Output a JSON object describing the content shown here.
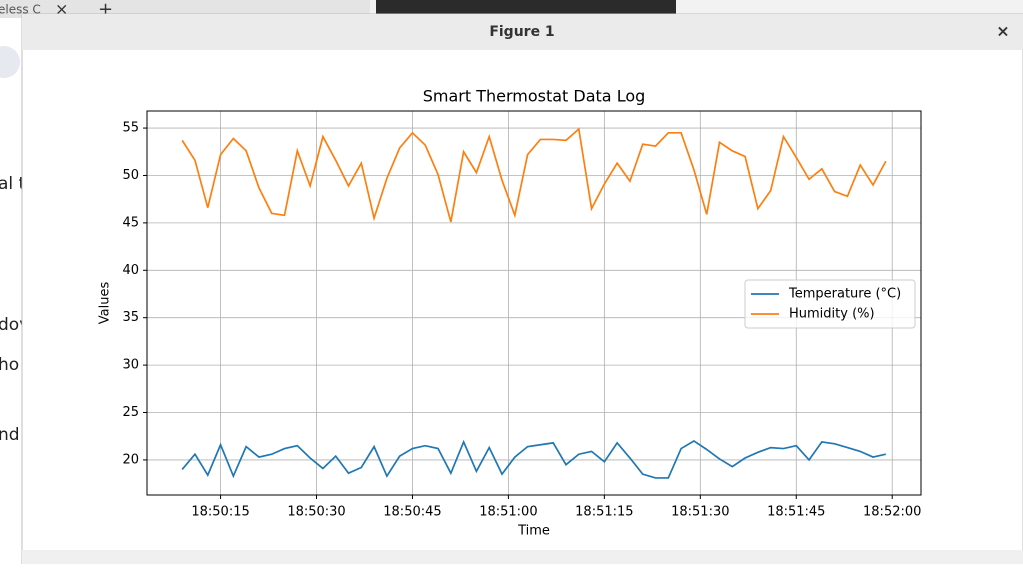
{
  "window_title": "Figure 1",
  "background": {
    "fragments": [
      "eless C",
      "al te",
      "dov",
      "ho",
      "nd"
    ]
  },
  "chart_data": {
    "type": "line",
    "title": "Smart Thermostat Data Log",
    "x_label": "Time",
    "y_label": "Values",
    "x": [
      "18:50:09",
      "18:50:11",
      "18:50:13",
      "18:50:15",
      "18:50:17",
      "18:50:19",
      "18:50:21",
      "18:50:23",
      "18:50:25",
      "18:50:27",
      "18:50:29",
      "18:50:31",
      "18:50:33",
      "18:50:35",
      "18:50:37",
      "18:50:39",
      "18:50:41",
      "18:50:43",
      "18:50:45",
      "18:50:47",
      "18:50:49",
      "18:50:51",
      "18:50:53",
      "18:50:55",
      "18:50:57",
      "18:50:59",
      "18:51:01",
      "18:51:03",
      "18:51:05",
      "18:51:07",
      "18:51:09",
      "18:51:11",
      "18:51:13",
      "18:51:15",
      "18:51:17",
      "18:51:19",
      "18:51:21",
      "18:51:23",
      "18:51:25",
      "18:51:27",
      "18:51:29",
      "18:51:31",
      "18:51:33",
      "18:51:35",
      "18:51:37",
      "18:51:39",
      "18:51:41",
      "18:51:43",
      "18:51:45",
      "18:51:47",
      "18:51:49",
      "18:51:51",
      "18:51:53",
      "18:51:55",
      "18:51:57",
      "18:51:59"
    ],
    "series": [
      {
        "name": "Temperature (°C)",
        "color": "#1f77b4",
        "values": [
          19.0,
          20.6,
          18.4,
          21.6,
          18.3,
          21.4,
          20.3,
          20.6,
          21.2,
          21.5,
          20.2,
          19.1,
          20.4,
          18.6,
          19.2,
          21.4,
          18.3,
          20.4,
          21.2,
          21.5,
          21.2,
          18.6,
          21.9,
          18.8,
          21.3,
          18.5,
          20.3,
          21.4,
          21.6,
          21.8,
          19.5,
          20.6,
          20.9,
          19.8,
          21.8,
          20.2,
          18.5,
          18.1,
          18.1,
          21.2,
          22.0,
          21.1,
          20.1,
          19.3,
          20.2,
          20.8,
          21.3,
          21.2,
          21.5,
          20.0,
          21.9,
          21.7,
          21.3,
          20.9,
          20.3,
          20.6
        ]
      },
      {
        "name": "Humidity (%)",
        "color": "#ff7f0e",
        "values": [
          53.7,
          51.6,
          46.6,
          52.2,
          53.9,
          52.6,
          48.7,
          46.0,
          45.8,
          52.6,
          48.9,
          54.1,
          51.6,
          48.9,
          51.3,
          45.5,
          49.7,
          52.9,
          54.5,
          53.2,
          50.1,
          45.1,
          52.5,
          50.3,
          54.1,
          49.5,
          45.8,
          52.2,
          53.8,
          53.8,
          53.7,
          54.9,
          46.5,
          49.1,
          51.3,
          49.4,
          53.3,
          53.1,
          54.5,
          54.5,
          50.6,
          45.9,
          53.5,
          52.6,
          52.0,
          46.5,
          48.4,
          54.1,
          51.9,
          49.6,
          50.7,
          48.3,
          47.8,
          51.1,
          49.0,
          51.5
        ]
      }
    ],
    "xlim": [
      "18:50:03.5",
      "18:52:04.5"
    ],
    "xticks": [
      "18:50:15",
      "18:50:30",
      "18:50:45",
      "18:51:00",
      "18:51:15",
      "18:51:30",
      "18:51:45",
      "18:52:00"
    ],
    "ylim": [
      16.3,
      56.8
    ],
    "yticks": [
      20,
      25,
      30,
      35,
      40,
      45,
      50,
      55
    ],
    "grid": true,
    "legend": "center right"
  }
}
